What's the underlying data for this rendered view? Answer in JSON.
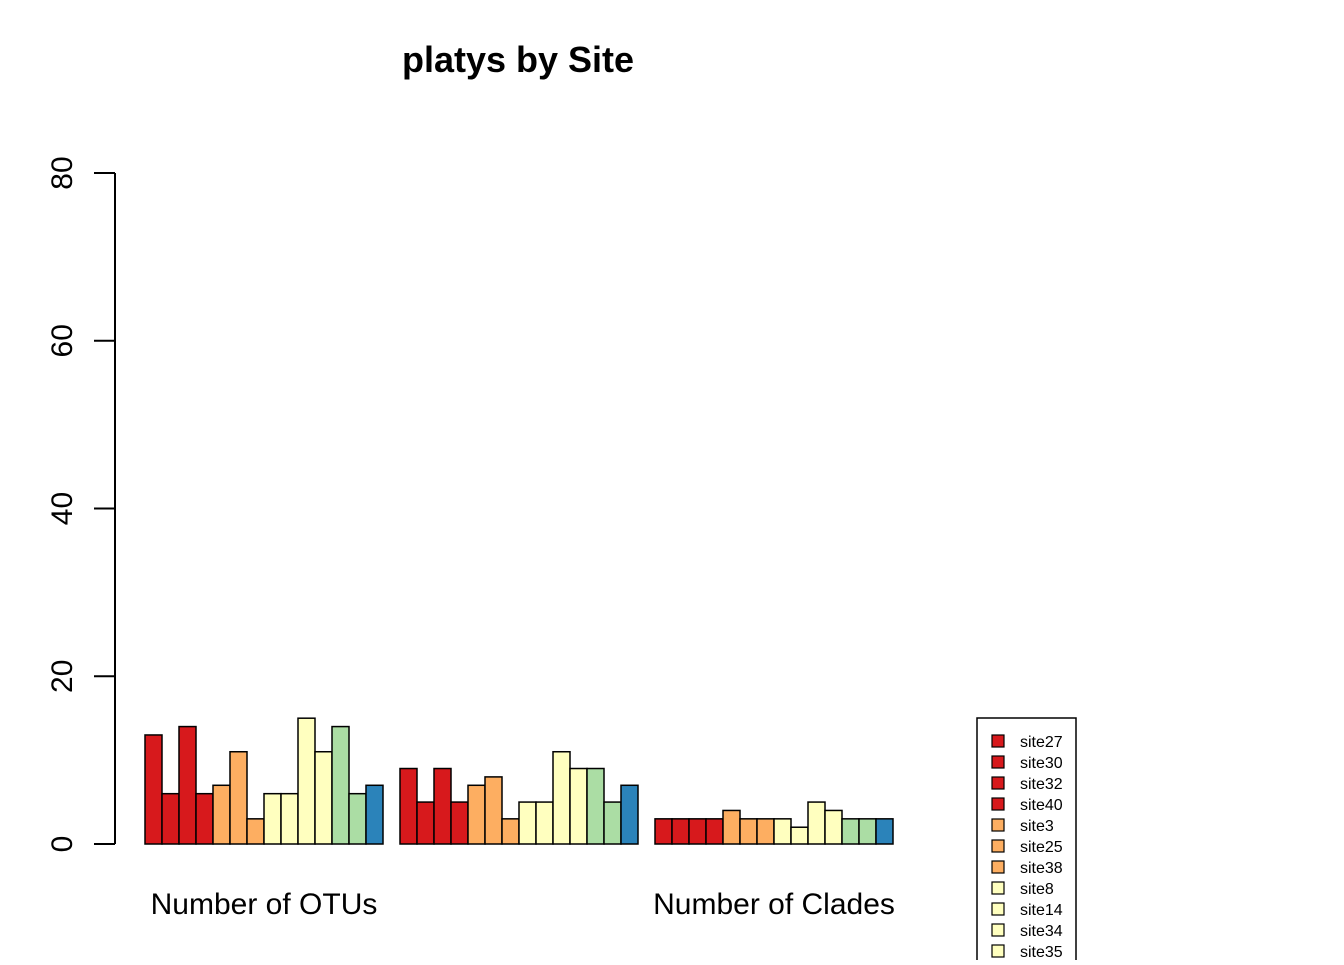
{
  "chart_data": {
    "type": "bar",
    "title": "platys by Site",
    "xlabel": "",
    "ylabel": "",
    "ylim": [
      0,
      80
    ],
    "yticks": [
      "0",
      "20",
      "40",
      "60",
      "80"
    ],
    "grid": false,
    "categories": [
      "Number of OTUs",
      "",
      "Number of Clades"
    ],
    "series": [
      {
        "name": "site27",
        "color": "#d7191c",
        "values": [
          13,
          9,
          3
        ]
      },
      {
        "name": "site30",
        "color": "#d7191c",
        "values": [
          6,
          5,
          3
        ]
      },
      {
        "name": "site32",
        "color": "#d7191c",
        "values": [
          14,
          9,
          3
        ]
      },
      {
        "name": "site40",
        "color": "#d7191c",
        "values": [
          6,
          5,
          3
        ]
      },
      {
        "name": "site3",
        "color": "#fdae61",
        "values": [
          7,
          7,
          4
        ]
      },
      {
        "name": "site25",
        "color": "#fdae61",
        "values": [
          11,
          8,
          3
        ]
      },
      {
        "name": "site38",
        "color": "#fdae61",
        "values": [
          3,
          3,
          3
        ]
      },
      {
        "name": "site8",
        "color": "#ffffbf",
        "values": [
          6,
          5,
          3
        ]
      },
      {
        "name": "site14",
        "color": "#ffffbf",
        "values": [
          6,
          5,
          2
        ]
      },
      {
        "name": "site34",
        "color": "#ffffbf",
        "values": [
          15,
          11,
          5
        ]
      },
      {
        "name": "site35",
        "color": "#ffffbf",
        "values": [
          11,
          9,
          4
        ]
      },
      {
        "name": "",
        "color": "#abdda4",
        "values": [
          14,
          9,
          3
        ]
      },
      {
        "name": "",
        "color": "#abdda4",
        "values": [
          6,
          5,
          3
        ]
      },
      {
        "name": "",
        "color": "#2b83ba",
        "values": [
          7,
          7,
          3
        ]
      }
    ],
    "legend": {
      "position": "bottom-right",
      "entries": [
        "site27",
        "site30",
        "site32",
        "site40",
        "site3",
        "site25",
        "site38",
        "site8",
        "site14",
        "site34",
        "site35"
      ]
    }
  }
}
